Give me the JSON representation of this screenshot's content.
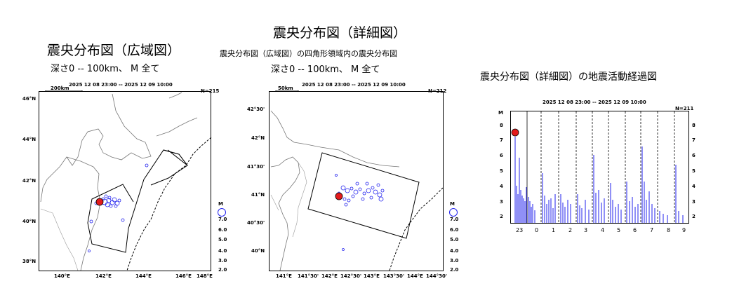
{
  "title_center": "震央分布図（詳細図）",
  "panel1": {
    "title": "震央分布図（広域図）",
    "subtitle": "深さ0 -- 100km、  M  全て",
    "scale": "200km",
    "date": "2025 12 08 23:00 -- 2025 12 09 10:00",
    "count": "N=215",
    "lat_labels": [
      "46°N",
      "44°N",
      "42°N",
      "40°N",
      "38°N"
    ],
    "lon_labels": [
      "140°E",
      "142°E",
      "144°E",
      "146°E",
      "148°E"
    ]
  },
  "panel2": {
    "title": "震央分布図（広域図）の四角形領域内の震央分布図",
    "subtitle": "深さ0 -- 100km、  M  全て",
    "scale": "50km",
    "date": "2025 12 08 23:00 -- 2025 12 09 10:00",
    "count": "N=212",
    "lat_labels": [
      "42°30'",
      "42°N",
      "41°30'",
      "41°N",
      "40°30'",
      "40°N"
    ],
    "lon_labels": [
      "141°E",
      "141°30'",
      "142°E",
      "142°30'",
      "143°E",
      "143°30'",
      "144°E",
      "144°30'"
    ]
  },
  "panel3": {
    "title": "震央分布図（詳細図）の地震活動経過図",
    "date": "2025 12 08 23:00 -- 2025 12 09 10:00",
    "count": "N=211",
    "yaxis_label": "M",
    "hours": [
      "23",
      "0",
      "1",
      "2",
      "3",
      "4",
      "5",
      "6",
      "7",
      "8",
      "9"
    ],
    "mag_ticks": [
      "8",
      "7",
      "6",
      "5",
      "4",
      "3",
      "2"
    ]
  },
  "legend": {
    "label": "M",
    "values": [
      "7.0",
      "6.0",
      "5.0",
      "4.0",
      "3.0",
      "2.0"
    ]
  },
  "colors": {
    "event": "#2222ee",
    "mainshock": "#e31a1c"
  }
}
